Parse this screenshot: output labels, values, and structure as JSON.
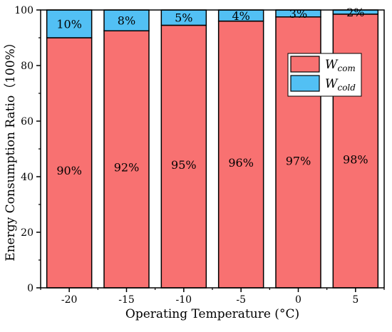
{
  "chart_data": {
    "type": "bar",
    "stacked": true,
    "categories": [
      "-20",
      "-15",
      "-10",
      "-5",
      "0",
      "5"
    ],
    "series": [
      {
        "name": "W",
        "subscript": "com",
        "values": [
          90,
          92.5,
          94.5,
          96,
          97.5,
          98.5
        ],
        "labels": [
          "90%",
          "92%",
          "95%",
          "96%",
          "97%",
          "98%"
        ],
        "color": "#f87171"
      },
      {
        "name": "W",
        "subscript": "cold",
        "values": [
          10,
          7.5,
          5.5,
          4,
          2.5,
          1.5
        ],
        "labels": [
          "10%",
          "8%",
          "5%",
          "4%",
          "3%",
          "2%"
        ],
        "color": "#52c0f4"
      }
    ],
    "xlabel": "Operating Temperature (°C)",
    "ylabel": "Energy Consumption Ratio（100%）",
    "ylim": [
      0,
      100
    ],
    "yticks": [
      "0",
      "20",
      "40",
      "60",
      "80",
      "100"
    ],
    "grid": false,
    "legend_position": "top-right"
  }
}
